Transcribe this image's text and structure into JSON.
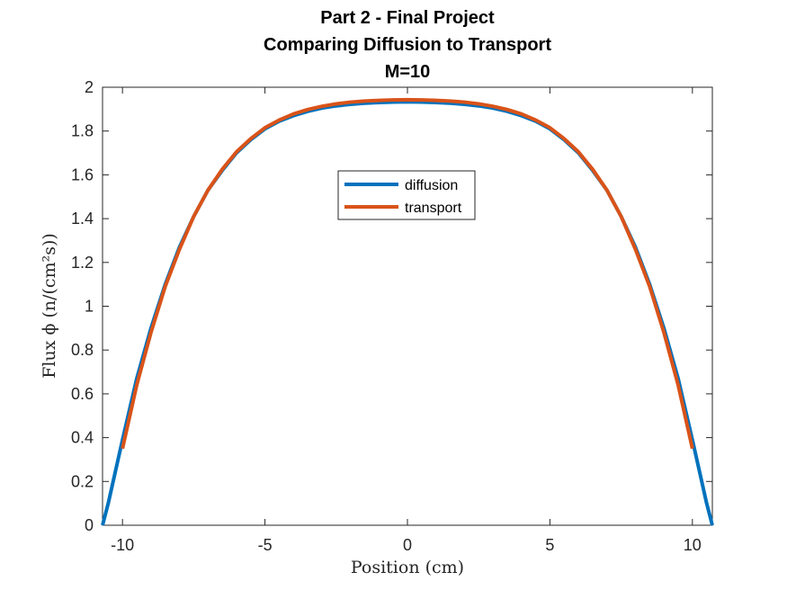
{
  "chart_data": {
    "type": "line",
    "title_lines": [
      "Part 2 - Final Project",
      "Comparing Diffusion to Transport",
      "M=10"
    ],
    "xlabel": "Position (cm)",
    "ylabel": "Flux ϕ (n/(cm²s))",
    "xlim": [
      -10.7,
      10.7
    ],
    "ylim": [
      0,
      2
    ],
    "xticks": [
      -10,
      -5,
      0,
      5,
      10
    ],
    "yticks": [
      0,
      0.2,
      0.4,
      0.6,
      0.8,
      1,
      1.2,
      1.4,
      1.6,
      1.8,
      2
    ],
    "xtick_labels": [
      "-10",
      "-5",
      "0",
      "5",
      "10"
    ],
    "ytick_labels": [
      "0",
      "0.2",
      "0.4",
      "0.6",
      "0.8",
      "1",
      "1.2",
      "1.4",
      "1.6",
      "1.8",
      "2"
    ],
    "legend_position": "top-center",
    "grid": false,
    "series": [
      {
        "name": "diffusion",
        "color": "#0072BD",
        "x": [
          -10.7,
          -10.5,
          -10.0,
          -9.5,
          -9.0,
          -8.5,
          -8.0,
          -7.5,
          -7.0,
          -6.5,
          -6.0,
          -5.5,
          -5.0,
          -4.5,
          -4.0,
          -3.5,
          -3.0,
          -2.5,
          -2.0,
          -1.5,
          -1.0,
          -0.5,
          0.0,
          0.5,
          1.0,
          1.5,
          2.0,
          2.5,
          3.0,
          3.5,
          4.0,
          4.5,
          5.0,
          5.5,
          6.0,
          6.5,
          7.0,
          7.5,
          8.0,
          8.5,
          9.0,
          9.5,
          10.0,
          10.5,
          10.7
        ],
        "y": [
          0.0,
          0.1,
          0.39,
          0.67,
          0.9,
          1.1,
          1.27,
          1.41,
          1.53,
          1.62,
          1.7,
          1.76,
          1.81,
          1.845,
          1.87,
          1.89,
          1.905,
          1.915,
          1.922,
          1.927,
          1.93,
          1.932,
          1.933,
          1.932,
          1.93,
          1.927,
          1.922,
          1.915,
          1.905,
          1.89,
          1.87,
          1.845,
          1.81,
          1.76,
          1.7,
          1.62,
          1.53,
          1.41,
          1.27,
          1.1,
          0.9,
          0.67,
          0.39,
          0.1,
          0.0
        ]
      },
      {
        "name": "transport",
        "color": "#D95319",
        "x": [
          -10.0,
          -9.5,
          -9.0,
          -8.5,
          -8.0,
          -7.5,
          -7.0,
          -6.5,
          -6.0,
          -5.5,
          -5.0,
          -4.5,
          -4.0,
          -3.5,
          -3.0,
          -2.5,
          -2.0,
          -1.5,
          -1.0,
          -0.5,
          0.0,
          0.5,
          1.0,
          1.5,
          2.0,
          2.5,
          3.0,
          3.5,
          4.0,
          4.5,
          5.0,
          5.5,
          6.0,
          6.5,
          7.0,
          7.5,
          8.0,
          8.5,
          9.0,
          9.5,
          10.0
        ],
        "y": [
          0.35,
          0.64,
          0.88,
          1.09,
          1.26,
          1.41,
          1.53,
          1.625,
          1.705,
          1.765,
          1.815,
          1.85,
          1.878,
          1.898,
          1.913,
          1.924,
          1.932,
          1.937,
          1.94,
          1.942,
          1.943,
          1.942,
          1.94,
          1.937,
          1.932,
          1.924,
          1.913,
          1.898,
          1.878,
          1.85,
          1.815,
          1.765,
          1.705,
          1.625,
          1.53,
          1.41,
          1.26,
          1.09,
          0.88,
          0.64,
          0.35
        ]
      }
    ]
  }
}
